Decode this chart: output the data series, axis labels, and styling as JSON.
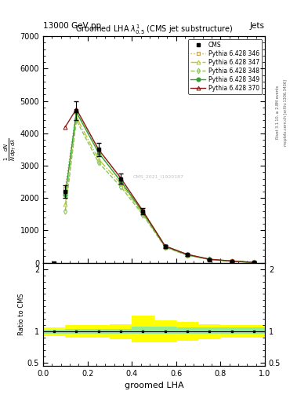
{
  "title_top": "13000 GeV pp",
  "title_right": "Jets",
  "main_title": "Groomed LHA $\\lambda^{1}_{0.5}$ (CMS jet substructure)",
  "xlabel": "groomed LHA",
  "ylabel_main": "$\\frac{1}{N} \\frac{dN}{dp_T\\,d\\lambda}$",
  "ylabel_ratio": "Ratio to CMS",
  "watermark": "CMS_2021_I1920187",
  "rivet_label": "Rivet 3.1.10, ≥ 2.8M events",
  "mcplots_label": "mcplots.cern.ch [arXiv:1306.3436]",
  "x_data": [
    0.05,
    0.1,
    0.15,
    0.25,
    0.35,
    0.45,
    0.55,
    0.65,
    0.75,
    0.85,
    0.95
  ],
  "x_edges": [
    0.0,
    0.1,
    0.2,
    0.3,
    0.4,
    0.5,
    0.6,
    0.7,
    0.8,
    0.9,
    1.0
  ],
  "cms_y": [
    0,
    2200,
    4700,
    3500,
    2600,
    1600,
    500,
    250,
    100,
    50,
    10
  ],
  "cms_yerr": [
    0,
    200,
    300,
    200,
    150,
    100,
    50,
    30,
    15,
    10,
    5
  ],
  "py346_y": [
    0,
    2300,
    4700,
    3500,
    2600,
    1600,
    520,
    260,
    110,
    55,
    12
  ],
  "py347_y": [
    0,
    1800,
    4500,
    3200,
    2450,
    1520,
    490,
    240,
    105,
    52,
    11
  ],
  "py348_y": [
    0,
    1600,
    4400,
    3100,
    2350,
    1480,
    480,
    235,
    103,
    51,
    10
  ],
  "py349_y": [
    0,
    2100,
    4650,
    3400,
    2520,
    1560,
    510,
    250,
    108,
    53,
    11
  ],
  "py370_y": [
    0,
    4200,
    4750,
    3500,
    2620,
    1600,
    520,
    260,
    112,
    56,
    12
  ],
  "ratio_x_edges": [
    0.0,
    0.1,
    0.2,
    0.3,
    0.4,
    0.5,
    0.6,
    0.7,
    0.8,
    0.9,
    1.0
  ],
  "ratio_green_lo": [
    0.97,
    0.97,
    0.97,
    0.97,
    0.97,
    0.97,
    0.97,
    0.97,
    0.97,
    0.97
  ],
  "ratio_green_hi": [
    1.03,
    1.04,
    1.04,
    1.04,
    1.08,
    1.08,
    1.06,
    1.06,
    1.06,
    1.06
  ],
  "ratio_yellow_lo": [
    0.93,
    0.9,
    0.9,
    0.88,
    0.82,
    0.82,
    0.85,
    0.88,
    0.9,
    0.9
  ],
  "ratio_yellow_hi": [
    1.07,
    1.1,
    1.1,
    1.12,
    1.25,
    1.18,
    1.15,
    1.12,
    1.1,
    1.1
  ],
  "color_346": "#c8a050",
  "color_347": "#b8cc30",
  "color_348": "#90c060",
  "color_349": "#30a030",
  "color_370": "#8b1a1a",
  "ylim_main": [
    0,
    7000
  ],
  "xlim": [
    0,
    1
  ],
  "ratio_ylim": [
    0.45,
    2.1
  ],
  "yticks_main": [
    0,
    1000,
    2000,
    3000,
    4000,
    5000,
    6000,
    7000
  ]
}
